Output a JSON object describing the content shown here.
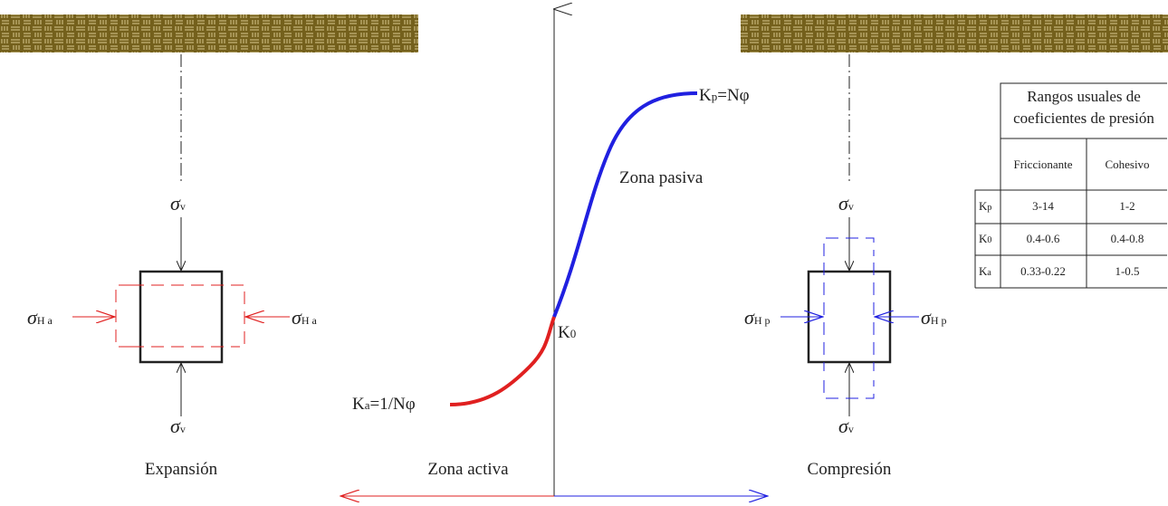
{
  "labels": {
    "expansion": "Expansión",
    "active_zone": "Zona activa",
    "compression": "Compresión",
    "passive_zone": "Zona pasiva",
    "kp": {
      "main": "K",
      "sub": "p",
      "rest": "=Nφ"
    },
    "ka": {
      "main": "K",
      "sub": "a",
      "rest": "=1/Nφ"
    },
    "k0": {
      "main": "K",
      "sub": "0"
    }
  },
  "left_diagram": {
    "sigma_top": {
      "main": "σ",
      "sub": "v"
    },
    "sigma_bottom": {
      "main": "σ",
      "sub": "v"
    },
    "sigma_left": {
      "main": "σ",
      "sub": "Ha"
    },
    "sigma_right": {
      "main": "σ",
      "sub": "Ha"
    }
  },
  "right_diagram": {
    "sigma_top": {
      "main": "σ",
      "sub": "v"
    },
    "sigma_bottom": {
      "main": "σ",
      "sub": "v"
    },
    "sigma_left": {
      "main": "σ",
      "sub": "Hp"
    },
    "sigma_right": {
      "main": "σ",
      "sub": "Hp"
    }
  },
  "table": {
    "title_lines": [
      "Rangos usuales de",
      "coeficientes de presión"
    ],
    "headers": [
      "Friccionante",
      "Cohesivo"
    ],
    "rows": [
      [
        {
          "main": "K",
          "sub": "p"
        },
        "3-14",
        "1-2"
      ],
      [
        {
          "main": "K",
          "sub": "0"
        },
        "0.4-0.6",
        "0.4-0.8"
      ],
      [
        {
          "main": "K",
          "sub": "a"
        },
        "0.33-0.22",
        "1-0.5"
      ]
    ]
  }
}
